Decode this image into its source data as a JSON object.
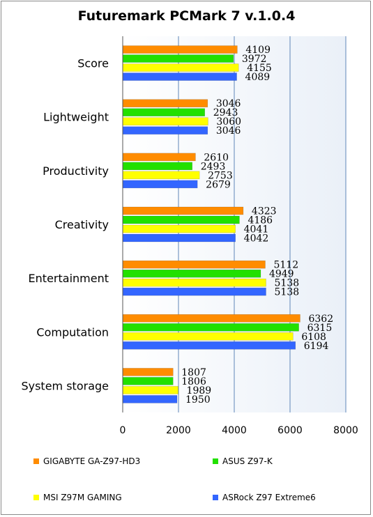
{
  "chart_data": {
    "type": "bar",
    "orientation": "horizontal",
    "title": "Futuremark PCMark 7 v.1.0.4",
    "categories": [
      "Score",
      "Lightweight",
      "Productivity",
      "Creativity",
      "Entertainment",
      "Computation",
      "System storage"
    ],
    "series": [
      {
        "name": "GIGABYTE GA-Z97-HD3",
        "color": "#ff8c00",
        "values": [
          4109,
          3046,
          2610,
          4323,
          5112,
          6362,
          1807
        ]
      },
      {
        "name": "ASUS Z97-K",
        "color": "#22e000",
        "values": [
          3972,
          2943,
          2493,
          4186,
          4949,
          6315,
          1806
        ]
      },
      {
        "name": "MSI Z97M GAMING",
        "color": "#ffff00",
        "values": [
          4155,
          3060,
          2753,
          4041,
          5138,
          6108,
          1989
        ]
      },
      {
        "name": "ASRock Z97 Extreme6",
        "color": "#3366ff",
        "values": [
          4089,
          3046,
          2679,
          4042,
          5138,
          6194,
          1950
        ]
      }
    ],
    "xlim": [
      0,
      8000
    ],
    "xticks": [
      "0",
      "2000",
      "4000",
      "6000",
      "8000"
    ],
    "grid": true,
    "legend_position": "bottom"
  }
}
